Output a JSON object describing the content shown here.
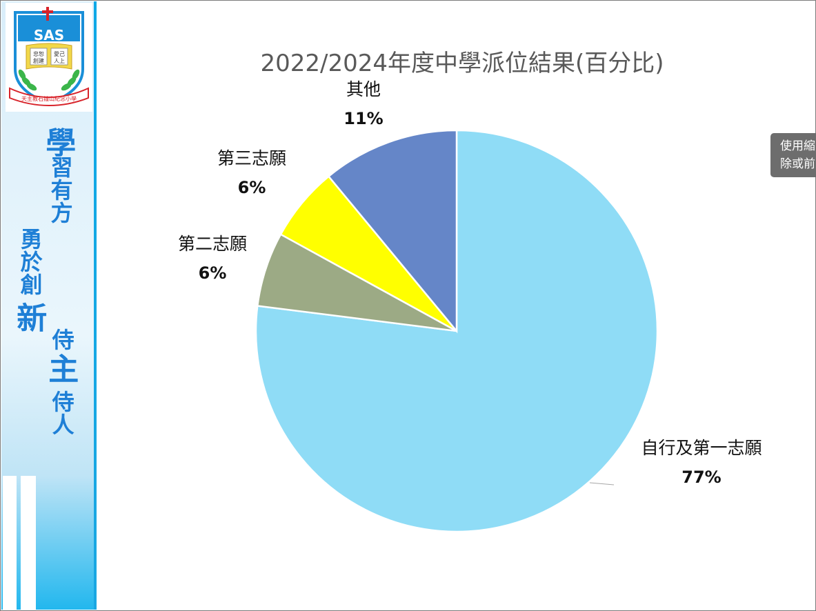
{
  "sidebar": {
    "logo": {
      "initials": "SAS",
      "book_left": "忠恕",
      "book_left2": "創建",
      "book_right": "愛己",
      "book_right2": "人上",
      "ribbon": "天主教石鐘山紀念小學",
      "colors": {
        "shield": "#1a8fd8",
        "banner": "#f2d84a",
        "laurel": "#3bb54a",
        "ribbon": "#d8232a",
        "cross": "#d8232a"
      }
    },
    "slogan": {
      "line1_big": "學",
      "line1_rest": "習有方",
      "line2_rest": "勇於創",
      "line2_big": "新",
      "line3_a": "侍",
      "line3_big": "主",
      "line3_rest": "侍人"
    }
  },
  "tooltip": {
    "line1": "使用縮",
    "line2": "除或前"
  },
  "chart_data": {
    "type": "pie",
    "title": "2022/2024年度中學派位結果(百分比)",
    "slices": [
      {
        "label": "自行及第一志願",
        "value": 77,
        "display": "77%",
        "color": "#8fdcf6"
      },
      {
        "label": "第二志願",
        "value": 6,
        "display": "6%",
        "color": "#9caa85"
      },
      {
        "label": "第三志願",
        "value": 6,
        "display": "6%",
        "color": "#ffff00"
      },
      {
        "label": "其他",
        "value": 11,
        "display": "11%",
        "color": "#6586c8"
      }
    ],
    "start_angle_deg": 0,
    "direction": "clockwise",
    "legend": "none",
    "data_labels": "outside"
  }
}
